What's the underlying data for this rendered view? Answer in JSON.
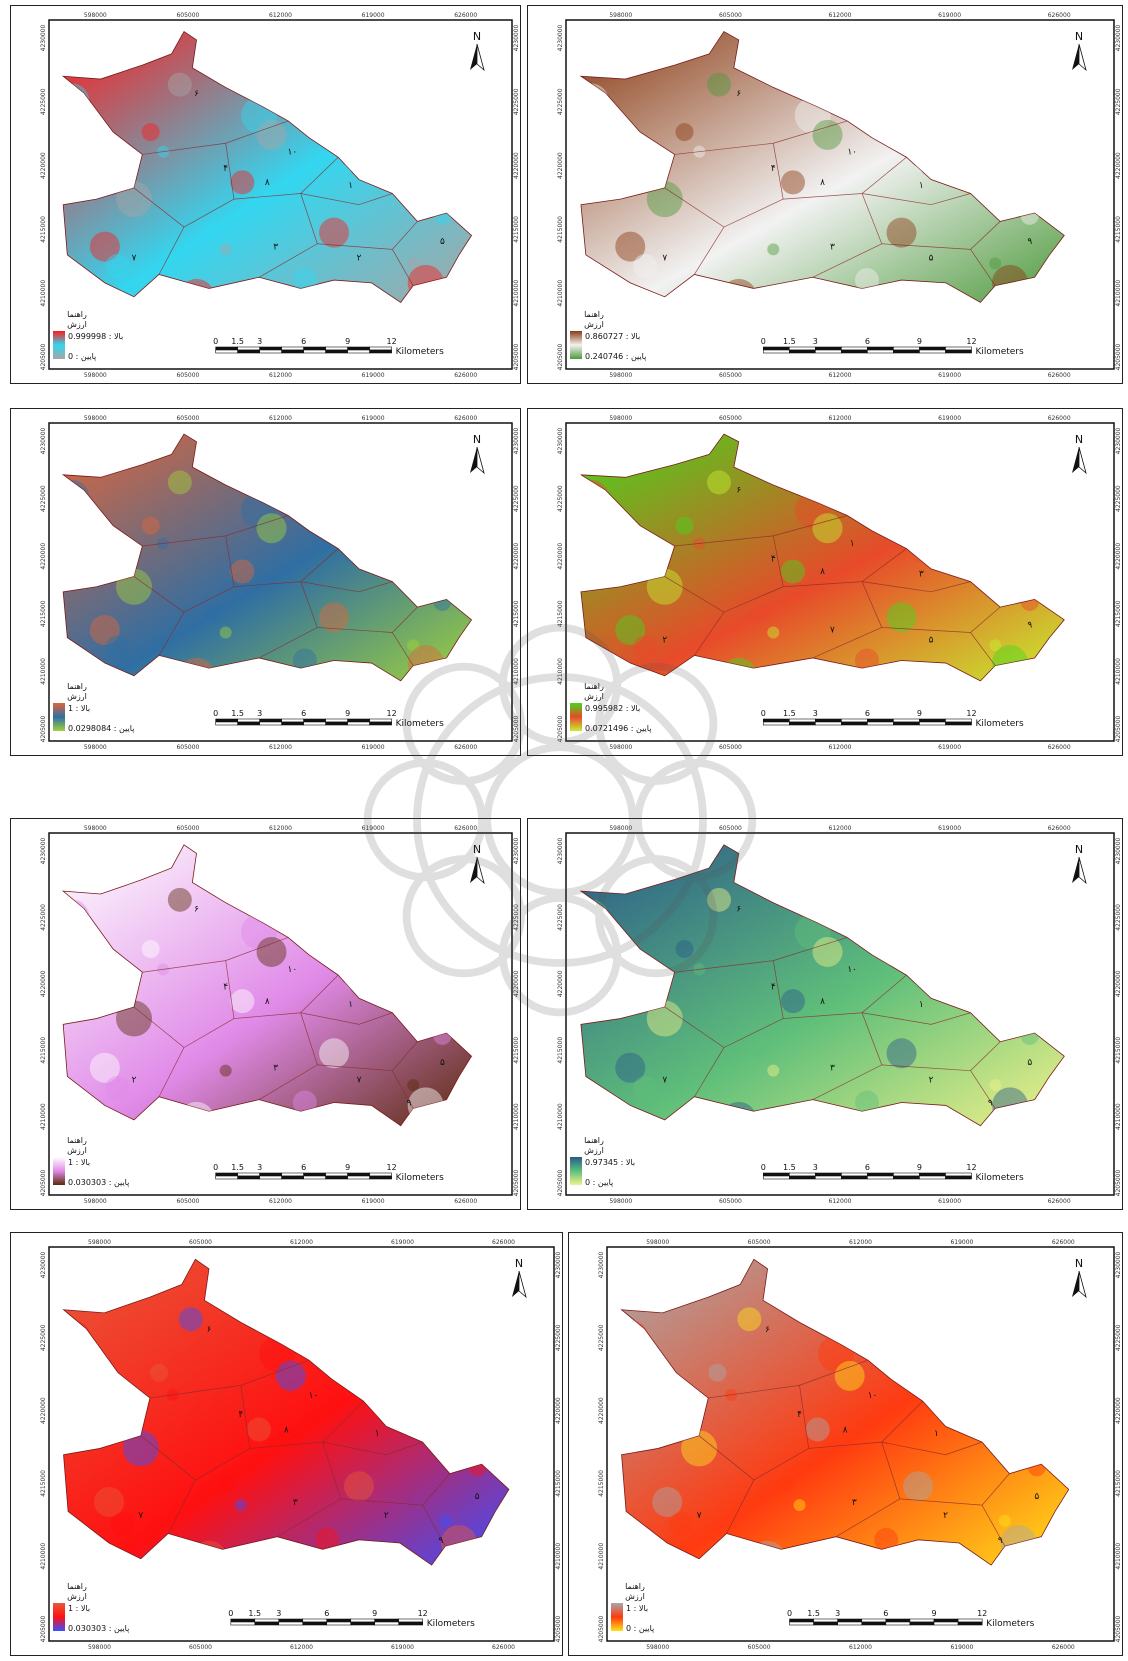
{
  "common": {
    "north": "N",
    "scale_ticks": [
      "0",
      "1.5",
      "3",
      "6",
      "9",
      "12"
    ],
    "scale_unit": "Kilometers",
    "x_ticks": [
      "598000",
      "605000",
      "612000",
      "619000",
      "626000"
    ],
    "y_ticks": [
      "4230000",
      "4225000",
      "4220000",
      "4215000",
      "4210000",
      "4205000"
    ]
  },
  "maps": [
    {
      "legend": {
        "title": "راهنما",
        "subtitle": "ارزش",
        "high": "0.999998 : بالا",
        "low": "پایین : 0"
      },
      "colors": [
        "#ff1a1a",
        "#33d6f0",
        "#a6a6a6"
      ],
      "zone_labels": [
        "۶",
        "۴",
        "۱۰",
        "۸",
        "۱",
        "۳",
        "۷",
        "۲",
        "۵"
      ]
    },
    {
      "legend": {
        "title": "راهنما",
        "subtitle": "ارزش",
        "high": "0.860727 : بالا",
        "low": "پایین : 0.240746"
      },
      "colors": [
        "#8a3a12",
        "#f2f2f2",
        "#4d9a3c"
      ],
      "zone_labels": [
        "۶",
        "۴",
        "۱۰",
        "۸",
        "۱",
        "۳",
        "۷",
        "۵",
        "۹"
      ]
    },
    {
      "legend": {
        "title": "راهنما",
        "subtitle": "ارزش",
        "high": "1 : بالا",
        "low": "پایین : 0.0298084"
      },
      "colors": [
        "#e0663a",
        "#2f6ea3",
        "#9fd23c"
      ],
      "zone_labels": []
    },
    {
      "legend": {
        "title": "راهنما",
        "subtitle": "ارزش",
        "high": "0.995982 : بالا",
        "low": "پایین : 0.0721496"
      },
      "colors": [
        "#44d81c",
        "#e84a2a",
        "#c6ef30"
      ],
      "zone_labels": [
        "۶",
        "۴",
        "۱",
        "۸",
        "۳",
        "۷",
        "۲",
        "۵",
        "۹"
      ]
    },
    {
      "legend": {
        "title": "راهنما",
        "subtitle": "ارزش",
        "high": "1 : بالا",
        "low": "پایین : 0.030303"
      },
      "colors": [
        "#ffffff",
        "#e08ae8",
        "#5a2a0a"
      ],
      "zone_labels": [
        "۶",
        "۴",
        "۱۰",
        "۸",
        "۱",
        "۳",
        "۲",
        "۷",
        "۵",
        "۹"
      ]
    },
    {
      "legend": {
        "title": "راهنما",
        "subtitle": "ارزش",
        "high": "0.97345 : بالا",
        "low": "پایین : 0"
      },
      "colors": [
        "#2a5a8a",
        "#5fbf7a",
        "#f0f28a"
      ],
      "zone_labels": [
        "۶",
        "۴",
        "۱۰",
        "۸",
        "۱",
        "۳",
        "۷",
        "۲",
        "۵",
        "۹"
      ]
    },
    {
      "legend": {
        "title": "راهنما",
        "subtitle": "ارزش",
        "high": "1 : بالا",
        "low": "0.030303 : پایین"
      },
      "colors": [
        "#e8583a",
        "#ff1010",
        "#3a50ff"
      ],
      "zone_labels": [
        "۶",
        "۴",
        "۱۰",
        "۸",
        "۱",
        "۳",
        "۷",
        "۲",
        "۵",
        "۹"
      ]
    },
    {
      "legend": {
        "title": "راهنما",
        "subtitle": "ارزش",
        "high": "1 : بالا",
        "low": "0 : پایین"
      },
      "colors": [
        "#a8a8a8",
        "#ff3a10",
        "#ffe21a"
      ],
      "zone_labels": [
        "۶",
        "۴",
        "۱۰",
        "۸",
        "۱",
        "۳",
        "۷",
        "۲",
        "۵",
        "۹"
      ]
    }
  ]
}
